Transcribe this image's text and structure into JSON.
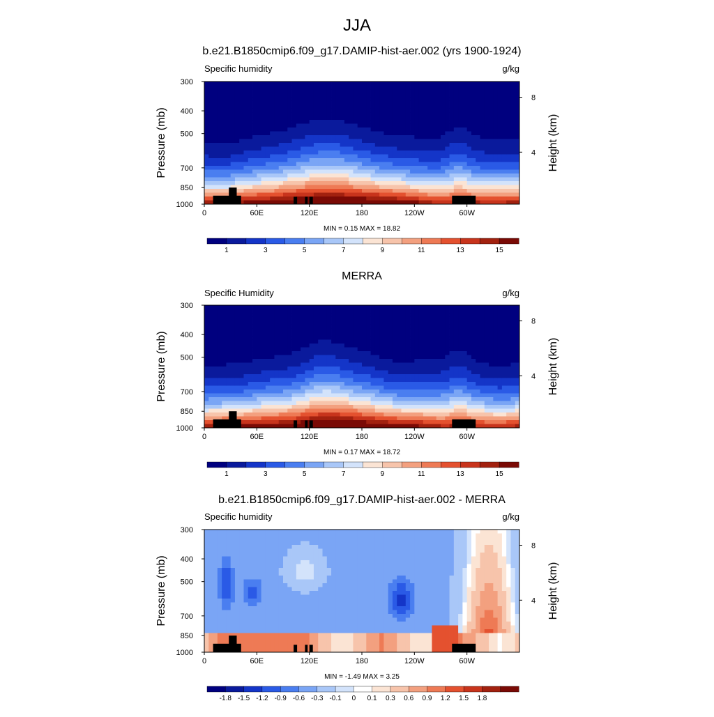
{
  "figure": {
    "title": "JJA"
  },
  "colors": {
    "abs_levels": [
      "#00007f",
      "#0a1a9c",
      "#1435c8",
      "#2a5ae6",
      "#4a7ef0",
      "#7aa5f5",
      "#a9c7f8",
      "#d3e3fb",
      "#fbe4d4",
      "#f7c4ab",
      "#f3a07f",
      "#ee7a55",
      "#e4512f",
      "#c8341c",
      "#a2210f",
      "#7a0a05"
    ],
    "diff_levels": [
      "#00007f",
      "#0a1a9c",
      "#1435c8",
      "#2a5ae6",
      "#4a7ef0",
      "#7aa5f5",
      "#a9c7f8",
      "#d3e3fb",
      "#ffffff",
      "#fbe4d4",
      "#f7c4ab",
      "#f3a07f",
      "#ee7a55",
      "#e4512f",
      "#c8341c",
      "#a2210f",
      "#7a0a05"
    ],
    "land_mask": "#000000"
  },
  "chart_data": [
    {
      "type": "heatmap",
      "title": "b.e21.B1850cmip6.f09_g17.DAMIP-hist-aer.002 (yrs 1900-1924)",
      "left_label": "Specific humidity",
      "right_label": "g/kg",
      "ylabel": "Pressure (mb)",
      "ylabel_right": "Height (km)",
      "x_ticks": [
        "0",
        "60E",
        "120E",
        "180",
        "120W",
        "60W"
      ],
      "x_tick_values": [
        0,
        60,
        120,
        180,
        240,
        300
      ],
      "xlim": [
        0,
        360
      ],
      "y_ticks": [
        "300",
        "400",
        "500",
        "700",
        "850",
        "1000"
      ],
      "y_tick_values": [
        300,
        400,
        500,
        700,
        850,
        1000
      ],
      "ylim": [
        300,
        1000
      ],
      "y_scale": "log",
      "y_right_ticks": [
        "8",
        "4"
      ],
      "y_right_tick_pressures": [
        350,
        600
      ],
      "stats": "MIN =   0.15  MAX =  18.82",
      "colorbar_labels": [
        "1",
        "3",
        "5",
        "7",
        "9",
        "11",
        "13",
        "15"
      ],
      "levels": [
        1,
        2,
        3,
        4,
        5,
        6,
        7,
        8,
        9,
        10,
        11,
        12,
        13,
        14,
        15
      ]
    },
    {
      "type": "heatmap",
      "title": "MERRA",
      "left_label": "Specific Humidity",
      "right_label": "g/kg",
      "ylabel": "Pressure (mb)",
      "ylabel_right": "Height (km)",
      "x_ticks": [
        "0",
        "60E",
        "120E",
        "180",
        "120W",
        "60W"
      ],
      "x_tick_values": [
        0,
        60,
        120,
        180,
        240,
        300
      ],
      "xlim": [
        0,
        360
      ],
      "y_ticks": [
        "300",
        "400",
        "500",
        "700",
        "850",
        "1000"
      ],
      "y_tick_values": [
        300,
        400,
        500,
        700,
        850,
        1000
      ],
      "ylim": [
        300,
        1000
      ],
      "y_scale": "log",
      "y_right_ticks": [
        "8",
        "4"
      ],
      "y_right_tick_pressures": [
        350,
        600
      ],
      "stats": "MIN =   0.17  MAX =  18.72",
      "colorbar_labels": [
        "1",
        "3",
        "5",
        "7",
        "9",
        "11",
        "13",
        "15"
      ],
      "levels": [
        1,
        2,
        3,
        4,
        5,
        6,
        7,
        8,
        9,
        10,
        11,
        12,
        13,
        14,
        15
      ]
    },
    {
      "type": "heatmap",
      "title": "b.e21.B1850cmip6.f09_g17.DAMIP-hist-aer.002 - MERRA",
      "left_label": "Specific humidity",
      "right_label": "g/kg",
      "ylabel": "Pressure (mb)",
      "ylabel_right": "Height (km)",
      "x_ticks": [
        "0",
        "60E",
        "120E",
        "180",
        "120W",
        "60W"
      ],
      "x_tick_values": [
        0,
        60,
        120,
        180,
        240,
        300
      ],
      "xlim": [
        0,
        360
      ],
      "y_ticks": [
        "300",
        "400",
        "500",
        "700",
        "850",
        "1000"
      ],
      "y_tick_values": [
        300,
        400,
        500,
        700,
        850,
        1000
      ],
      "ylim": [
        300,
        1000
      ],
      "y_scale": "log",
      "y_right_ticks": [
        "8",
        "4"
      ],
      "y_right_tick_pressures": [
        350,
        600
      ],
      "stats": "MIN =  -1.49  MAX =   3.25",
      "colorbar_labels": [
        "-1.8",
        "-1.5",
        "-1.2",
        "-0.9",
        "-0.6",
        "-0.3",
        "-0.1",
        "0",
        "0.1",
        "0.3",
        "0.6",
        "0.9",
        "1.2",
        "1.5",
        "1.8"
      ],
      "levels": [
        -1.8,
        -1.5,
        -1.2,
        -0.9,
        -0.6,
        -0.3,
        -0.1,
        0,
        0.1,
        0.3,
        0.6,
        0.9,
        1.2,
        1.5,
        1.8
      ]
    }
  ]
}
